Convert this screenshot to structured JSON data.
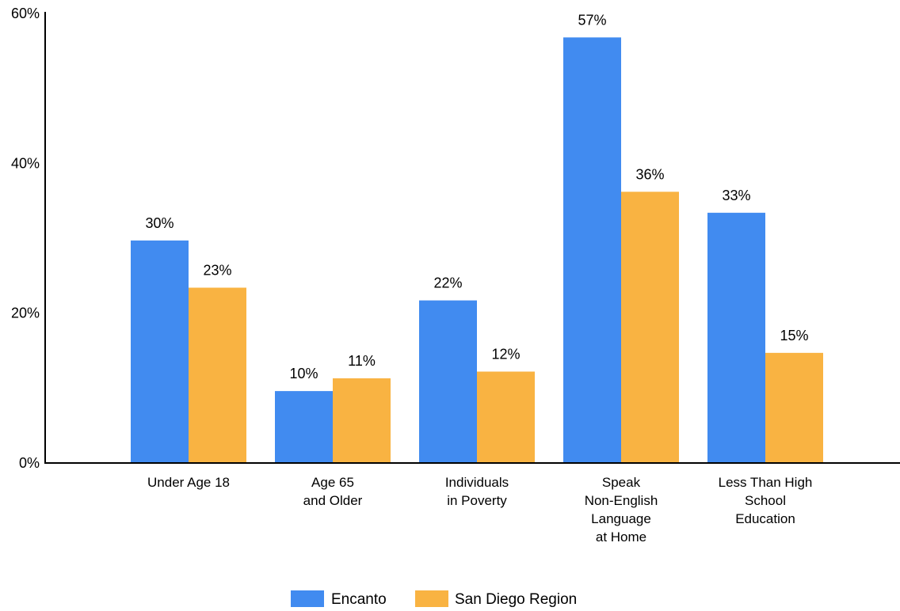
{
  "chart_data": {
    "type": "bar",
    "categories": [
      [
        "Under Age 18"
      ],
      [
        "Age 65",
        "and Older"
      ],
      [
        "Individuals",
        "in Poverty"
      ],
      [
        "Speak",
        "Non-English",
        "Language",
        "at Home"
      ],
      [
        "Less Than High",
        "School",
        "Education"
      ]
    ],
    "series": [
      {
        "name": "Encanto",
        "color": "#418BF0",
        "values": [
          29.7,
          9.6,
          21.7,
          56.8,
          33.4
        ],
        "labels": [
          "30%",
          "10%",
          "22%",
          "57%",
          "33%"
        ]
      },
      {
        "name": "San Diego Region",
        "color": "#F9B342",
        "values": [
          23.4,
          11.3,
          12.2,
          36.2,
          14.7
        ],
        "labels": [
          "23%",
          "11%",
          "12%",
          "36%",
          "15%"
        ]
      }
    ],
    "yticks": [
      0,
      20,
      40,
      60
    ],
    "ytick_labels": [
      "0%",
      "20%",
      "40%",
      "60%"
    ],
    "ylim": [
      0,
      60
    ],
    "grid": false,
    "legend_position": "bottom-center"
  }
}
